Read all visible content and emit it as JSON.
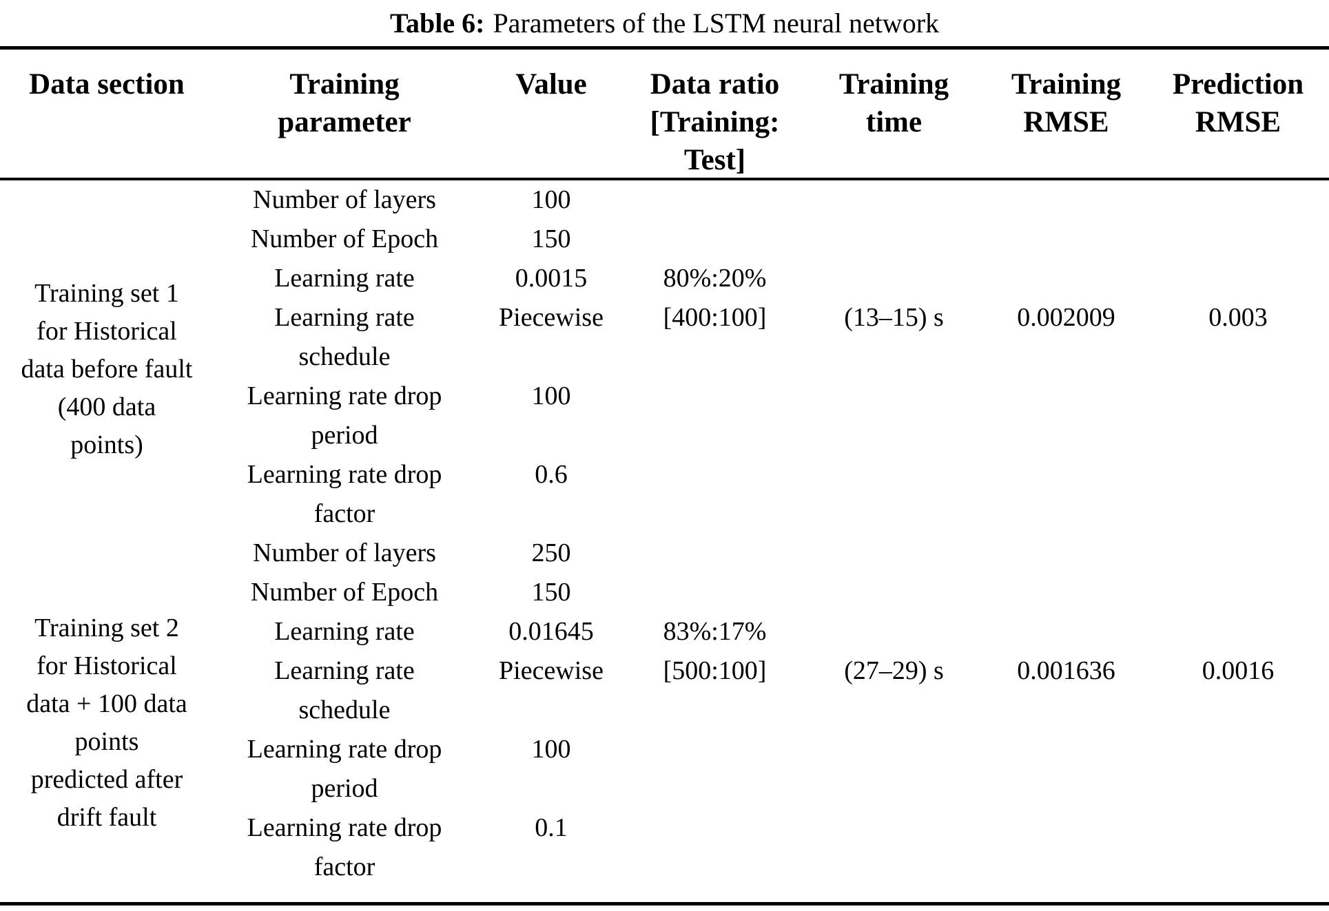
{
  "caption": {
    "label": "Table 6:",
    "text": "Parameters of the LSTM neural network"
  },
  "header": {
    "data_section": "Data section",
    "training_parameter": "Training\nparameter",
    "value": "Value",
    "data_ratio": "Data ratio\n[Training:\nTest]",
    "training_time": "Training\ntime",
    "training_rmse": "Training\nRMSE",
    "prediction_rmse": "Prediction\nRMSE"
  },
  "sections": [
    {
      "data_section": "Training set 1\nfor Historical\ndata before fault\n(400 data\npoints)",
      "params": [
        {
          "name": "Number of layers",
          "value": "100"
        },
        {
          "name": "Number of Epoch",
          "value": "150"
        },
        {
          "name": "Learning rate",
          "value": "0.0015"
        },
        {
          "name": "Learning rate\nschedule",
          "value": "Piecewise"
        },
        {
          "name": "Learning rate drop\nperiod",
          "value": "100"
        },
        {
          "name": "Learning rate drop\nfactor",
          "value": "0.6"
        }
      ],
      "data_ratio": "80%:20%\n[400:100]",
      "training_time": "(13–15) s",
      "training_rmse": "0.002009",
      "prediction_rmse": "0.003"
    },
    {
      "data_section": "Training set 2\nfor Historical\ndata + 100 data\npoints\npredicted after\ndrift fault",
      "params": [
        {
          "name": "Number of layers",
          "value": "250"
        },
        {
          "name": "Number of Epoch",
          "value": "150"
        },
        {
          "name": "Learning rate",
          "value": "0.01645"
        },
        {
          "name": "Learning rate\nschedule",
          "value": "Piecewise"
        },
        {
          "name": "Learning rate drop\nperiod",
          "value": "100"
        },
        {
          "name": "Learning rate drop\nfactor",
          "value": "0.1"
        }
      ],
      "data_ratio": "83%:17%\n[500:100]",
      "training_time": "(27–29) s",
      "training_rmse": "0.001636",
      "prediction_rmse": "0.0016"
    }
  ]
}
